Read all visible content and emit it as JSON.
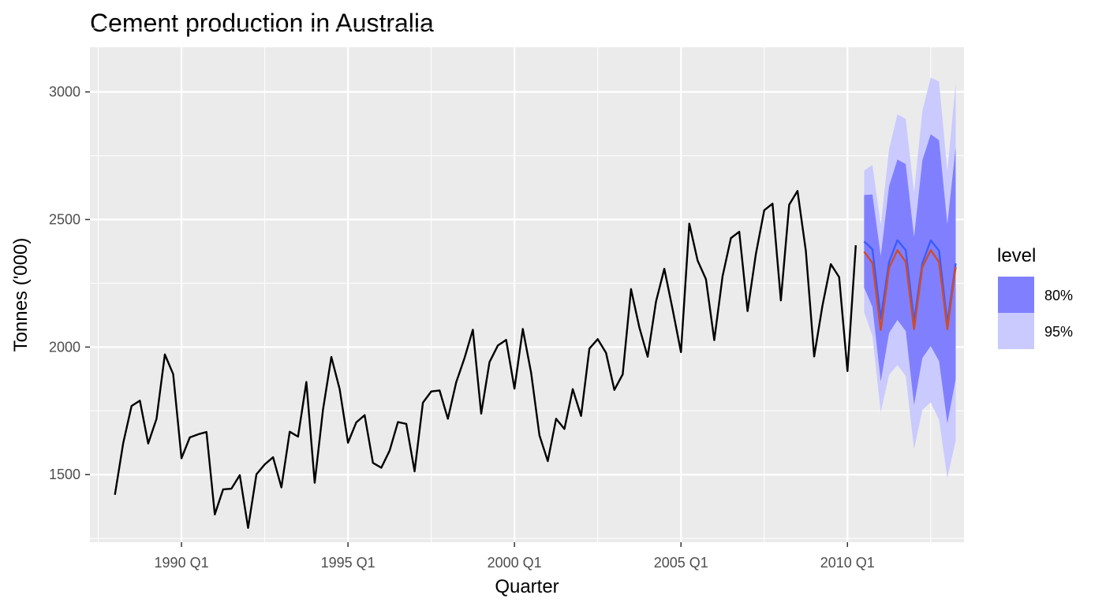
{
  "chart_data": {
    "type": "line",
    "title": "Cement production in Australia",
    "xlabel": "Quarter",
    "ylabel": "Tonnes ('000)",
    "x_start": "1988 Q1",
    "x_ticks": [
      "1990 Q1",
      "1995 Q1",
      "2000 Q1",
      "2005 Q1",
      "2010 Q1"
    ],
    "y_ticks": [
      1500,
      2000,
      2500,
      3000
    ],
    "xlim": [
      1987.25,
      2013.5
    ],
    "ylim": [
      1235,
      3175
    ],
    "grid": true,
    "legend": {
      "title": "level",
      "position": "right",
      "entries": [
        {
          "label": "80%",
          "color": "#8080ff"
        },
        {
          "label": "95%",
          "color": "#cacaff"
        }
      ]
    },
    "series": [
      {
        "kind": "observed",
        "color": "#000000",
        "values": [
          1421,
          1624,
          1769,
          1790,
          1622,
          1719,
          1971,
          1894,
          1564,
          1646,
          1658,
          1667,
          1344,
          1442,
          1445,
          1498,
          1291,
          1501,
          1540,
          1568,
          1450,
          1668,
          1649,
          1863,
          1468,
          1755,
          1961,
          1835,
          1625,
          1705,
          1733,
          1546,
          1527,
          1594,
          1706,
          1699,
          1513,
          1782,
          1826,
          1830,
          1719,
          1862,
          1957,
          2068,
          1739,
          1941,
          2006,
          2028,
          1837,
          2071,
          1899,
          1654,
          1553,
          1719,
          1679,
          1835,
          1730,
          1994,
          2031,
          1977,
          1832,
          1893,
          2227,
          2077,
          1962,
          2178,
          2307,
          2147,
          1980,
          2484,
          2339,
          2266,
          2027,
          2278,
          2427,
          2452,
          2141,
          2365,
          2536,
          2562,
          2183,
          2558,
          2612,
          2377,
          1963,
          2163,
          2325,
          2274,
          1906,
          2399
        ]
      },
      {
        "kind": "forecast-ets",
        "color": "#3b5bff",
        "values": [
          2414,
          2383,
          2111,
          2333,
          2419,
          2380,
          2102,
          2329,
          2418,
          2378,
          2091,
          2328
        ]
      },
      {
        "kind": "forecast-arima",
        "color": "#d04c26",
        "values": [
          2374,
          2330,
          2067,
          2310,
          2380,
          2334,
          2070,
          2313,
          2380,
          2333,
          2070,
          2314
        ]
      }
    ],
    "intervals": {
      "level80": {
        "color": "#8080ff",
        "lower": [
          2233,
          2157,
          1865,
          2055,
          2106,
          2063,
          1773,
          1957,
          2004,
          1945,
          1701,
          1873
        ],
        "upper": [
          2596,
          2598,
          2357,
          2631,
          2735,
          2717,
          2431,
          2732,
          2834,
          2811,
          2481,
          2784
        ]
      },
      "level95": {
        "color": "#cacaff",
        "lower": [
          2137,
          2043,
          1744,
          1891,
          1929,
          1887,
          1599,
          1754,
          1783,
          1715,
          1487,
          1632
        ],
        "upper": [
          2692,
          2713,
          2480,
          2775,
          2912,
          2895,
          2606,
          2925,
          3056,
          3041,
          2689,
          3034
        ]
      }
    }
  }
}
